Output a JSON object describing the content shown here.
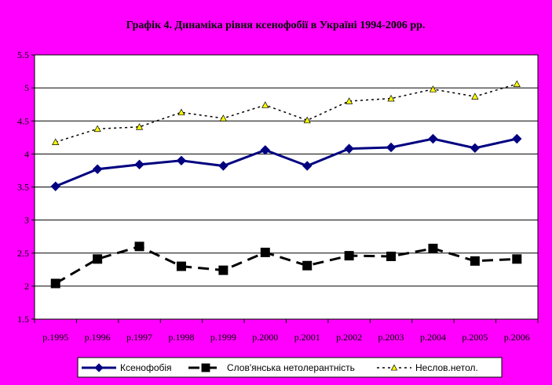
{
  "chart_data": {
    "type": "line",
    "title": "Графік 4. Динаміка рівня ксенофобії в Україні 1994-2006 рр.",
    "categories": [
      "р.1995",
      "р.1996",
      "р.1997",
      "р.1998",
      "р.1999",
      "р.2000",
      "р.2001",
      "р.2002",
      "р.2003",
      "р.2004",
      "р.2005",
      "р.2006"
    ],
    "ylim": [
      1.5,
      5.5
    ],
    "yticks": [
      "1.5",
      "2",
      "2.5",
      "3",
      "3.5",
      "4",
      "4.5",
      "5",
      "5.5"
    ],
    "grid": true,
    "legend_position": "bottom",
    "series": [
      {
        "name": "Ксенофобія",
        "values": [
          3.51,
          3.77,
          3.84,
          3.9,
          3.82,
          4.06,
          3.82,
          4.08,
          4.1,
          4.23,
          4.09,
          4.23
        ],
        "color": "#000080",
        "marker": "diamond",
        "line": "solid"
      },
      {
        "name": "Слов'янська нетолерантність",
        "values": [
          2.04,
          2.41,
          2.6,
          2.3,
          2.24,
          2.51,
          2.31,
          2.46,
          2.45,
          2.57,
          2.38,
          2.41
        ],
        "color": "#000000",
        "marker": "square",
        "line": "dashed"
      },
      {
        "name": "Неслов.нетол.",
        "values": [
          4.18,
          4.38,
          4.41,
          4.63,
          4.54,
          4.74,
          4.51,
          4.8,
          4.84,
          4.98,
          4.87,
          5.06
        ],
        "color": "#000000",
        "marker": "triangle",
        "marker_fill": "#ffff00",
        "line": "dotted"
      }
    ]
  }
}
